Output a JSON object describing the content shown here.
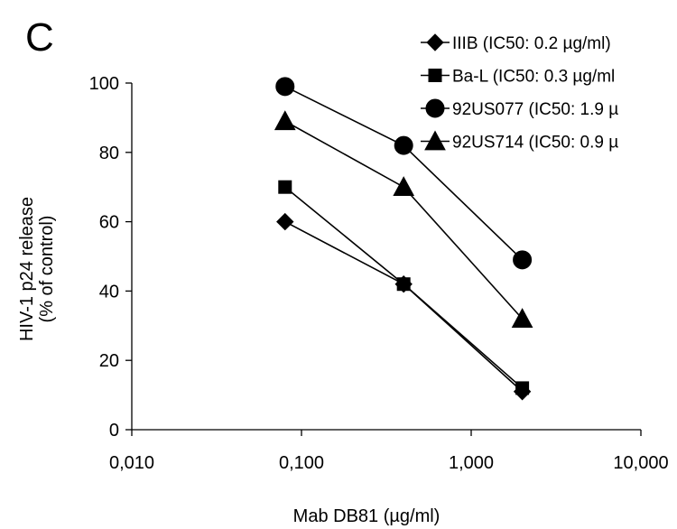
{
  "panel_label": "C",
  "chart_data": {
    "type": "line",
    "x_scale": "log",
    "xlim": [
      0.01,
      10
    ],
    "ylim": [
      0,
      100
    ],
    "x_ticks": [
      0.01,
      0.1,
      1,
      10
    ],
    "x_tick_labels": [
      "0,010",
      "0,100",
      "1,000",
      "10,000"
    ],
    "y_ticks": [
      0,
      20,
      40,
      60,
      80,
      100
    ],
    "y_tick_labels": [
      "0",
      "20",
      "40",
      "60",
      "80",
      "100"
    ],
    "xlabel": "Mab DB81 (µg/ml)",
    "ylabel": [
      "HIV-1 p24 release",
      "(% of control)"
    ],
    "x": [
      0.08,
      0.4,
      2
    ],
    "legend_position": "top-right",
    "grid": false,
    "series": [
      {
        "name": "IIIB (IC50: 0.2 µg/ml)",
        "marker": "diamond",
        "values": [
          60,
          42,
          11
        ]
      },
      {
        "name": "Ba-L (IC50: 0.3 µg/ml",
        "marker": "square",
        "values": [
          70,
          42,
          12
        ]
      },
      {
        "name": "92US077 (IC50: 1.9 µ",
        "marker": "circle",
        "values": [
          99,
          82,
          49
        ]
      },
      {
        "name": "92US714 (IC50: 0.9 µ",
        "marker": "triangle",
        "values": [
          89,
          70,
          32
        ]
      }
    ],
    "color": "#000000"
  }
}
